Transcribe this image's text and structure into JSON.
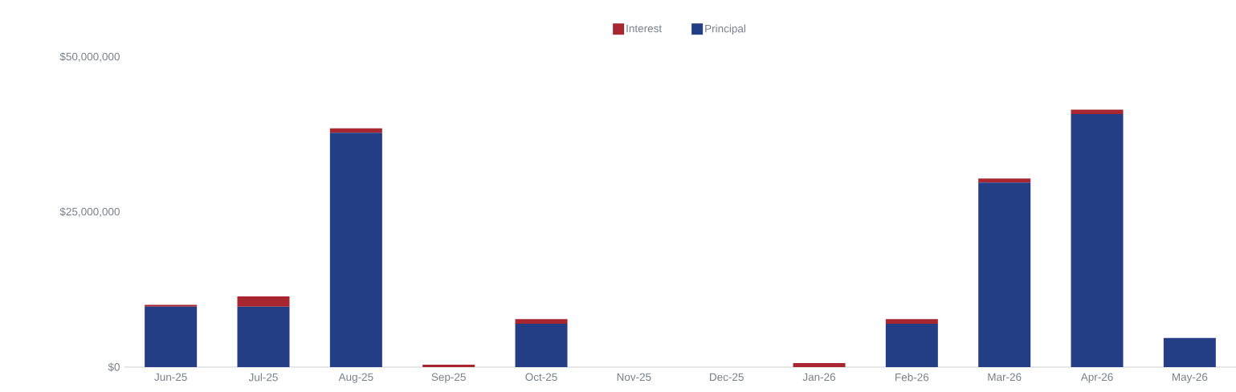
{
  "chart_data": {
    "type": "bar",
    "stacked": true,
    "legend": "top",
    "categories": [
      "Jun-25",
      "Jul-25",
      "Aug-25",
      "Sep-25",
      "Oct-25",
      "Nov-25",
      "Dec-25",
      "Jan-26",
      "Feb-26",
      "Mar-26",
      "Apr-26",
      "May-26"
    ],
    "series": [
      {
        "name": "Principal",
        "color": "#233e85",
        "values": [
          9750000,
          9750000,
          37800000,
          0,
          7000000,
          0,
          0,
          0,
          7000000,
          29750000,
          40800000,
          4700000
        ]
      },
      {
        "name": "Interest",
        "color": "#a8262f",
        "values": [
          300000,
          1650000,
          700000,
          390000,
          730000,
          0,
          0,
          660000,
          730000,
          650000,
          700000,
          0
        ]
      }
    ],
    "ylim": [
      0,
      50000000
    ],
    "yticks": [
      {
        "value": 0,
        "label": "$0"
      },
      {
        "value": 25000000,
        "label": "$25,000,000"
      },
      {
        "value": 50000000,
        "label": "$50,000,000"
      }
    ]
  }
}
